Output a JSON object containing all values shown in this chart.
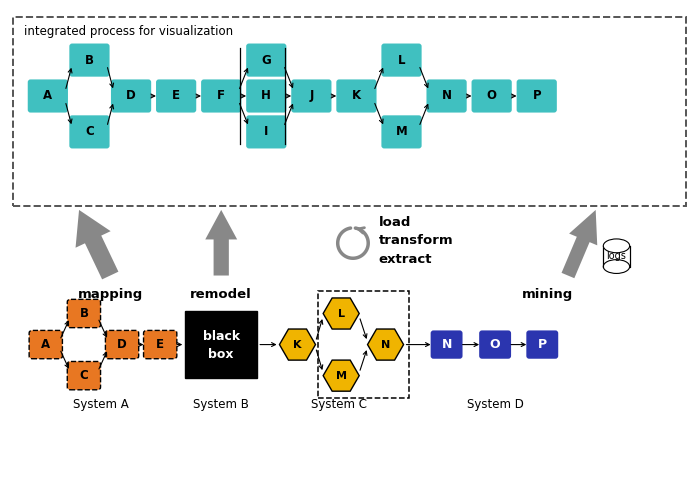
{
  "fig_width": 6.99,
  "fig_height": 4.82,
  "dpi": 100,
  "teal": "#40C0C0",
  "orange": "#E87722",
  "yellow": "#F0B400",
  "blue": "#2B35AF",
  "black": "#000000",
  "white": "#FFFFFF",
  "arrow_gray": "#888888",
  "dash_color": "#555555",
  "bg": "#FFFFFF",
  "xlim": [
    0,
    10
  ],
  "ylim": [
    0,
    6.9
  ]
}
